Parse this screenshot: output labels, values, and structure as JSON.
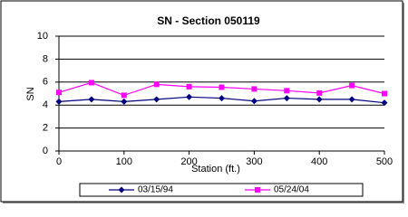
{
  "chart_data": {
    "type": "line",
    "title": "SN - Section 050119",
    "x_label": "Station (ft.)",
    "y_label": "SN",
    "x": [
      0,
      50,
      100,
      150,
      200,
      250,
      300,
      350,
      400,
      450,
      500
    ],
    "series": [
      {
        "name": "03/15/94",
        "color": "#000080",
        "marker": "diamond",
        "values": [
          4.3,
          4.5,
          4.3,
          4.5,
          4.7,
          4.6,
          4.35,
          4.6,
          4.5,
          4.5,
          4.2
        ]
      },
      {
        "name": "05/24/04",
        "color": "#ff00ff",
        "marker": "square",
        "values": [
          5.1,
          5.95,
          4.85,
          5.8,
          5.6,
          5.55,
          5.4,
          5.25,
          5.05,
          5.7,
          5.0
        ]
      }
    ],
    "xlim": [
      0,
      500
    ],
    "xticks": [
      0,
      100,
      200,
      300,
      400,
      500
    ],
    "ylim": [
      0,
      10
    ],
    "yticks": [
      0,
      2,
      4,
      6,
      8,
      10
    ],
    "grid": true
  }
}
